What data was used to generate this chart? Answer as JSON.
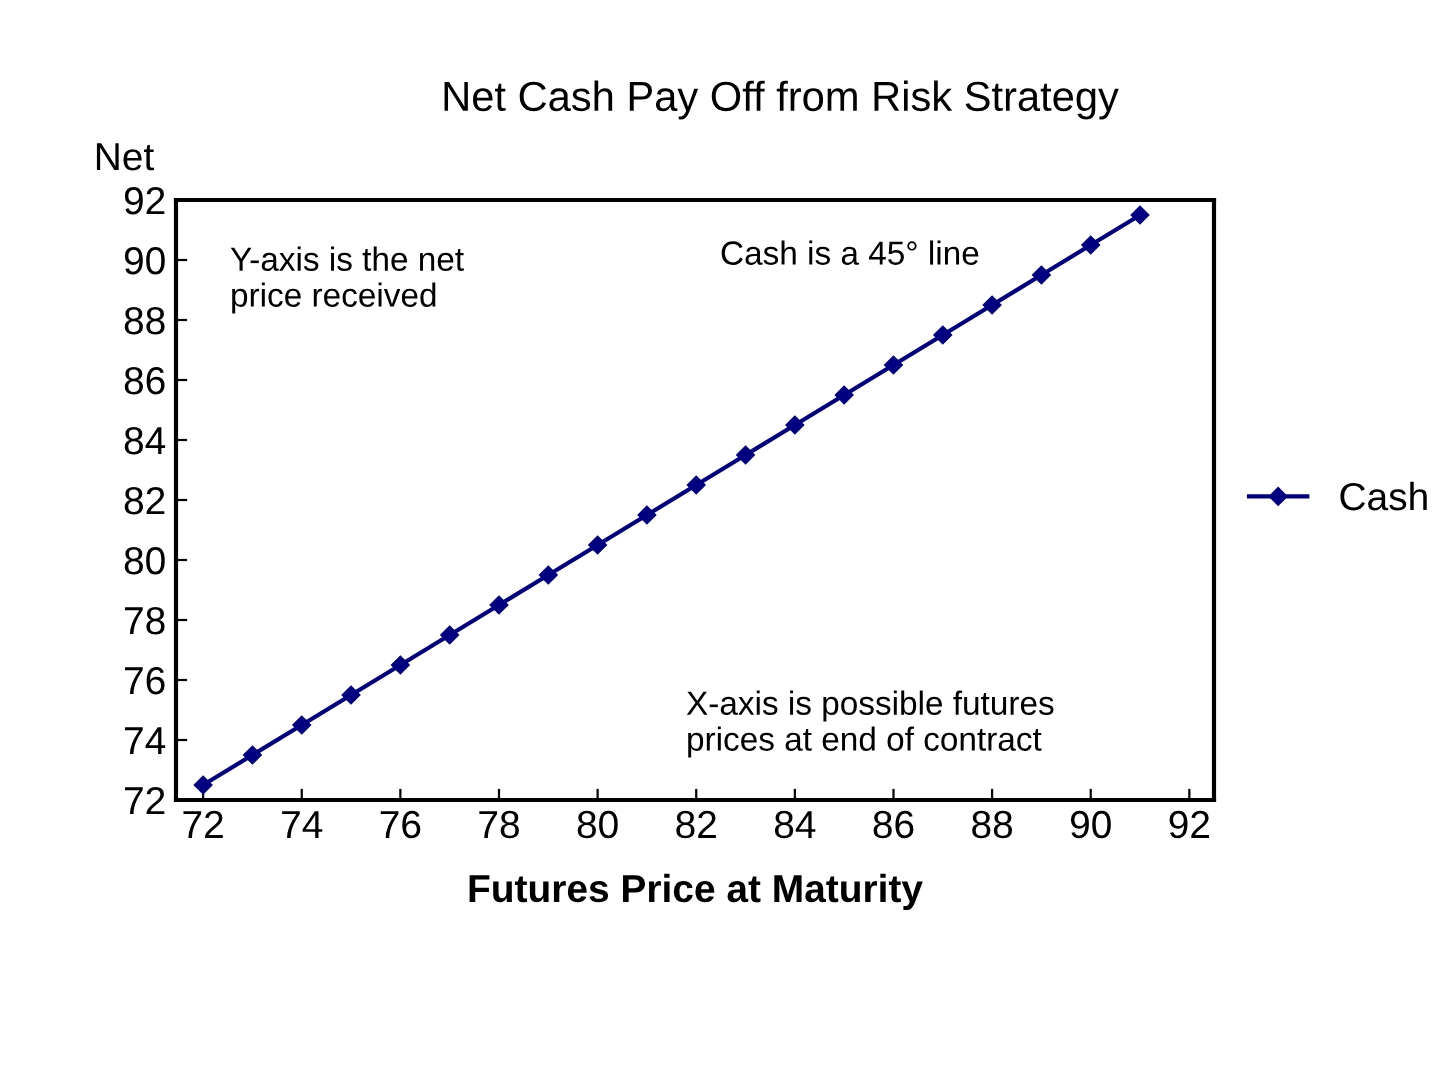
{
  "chart_data": {
    "type": "line",
    "title": "Net Cash Pay Off from Risk Strategy",
    "xlabel": "Futures Price at Maturity",
    "ylabel": "Net",
    "x": [
      72,
      73,
      74,
      75,
      76,
      77,
      78,
      79,
      80,
      81,
      82,
      83,
      84,
      85,
      86,
      87,
      88,
      89,
      90,
      91
    ],
    "series": [
      {
        "name": "Cash",
        "color": "#000080",
        "values": [
          72.5,
          73.5,
          74.5,
          75.5,
          76.5,
          77.5,
          78.5,
          79.5,
          80.5,
          81.5,
          82.5,
          83.5,
          84.5,
          85.5,
          86.5,
          87.5,
          88.5,
          89.5,
          90.5,
          91.5
        ]
      }
    ],
    "xlim": [
      71.45,
      92.5
    ],
    "xticks": [
      72,
      74,
      76,
      78,
      80,
      82,
      84,
      86,
      88,
      90,
      92
    ],
    "ylim": [
      72,
      92
    ],
    "yticks": [
      72,
      74,
      76,
      78,
      80,
      82,
      84,
      86,
      88,
      90,
      92
    ],
    "marker": "diamond",
    "line_style": "solid",
    "grid": false,
    "legend": "right",
    "annotations": [
      "Y-axis is the net\nprice received",
      "Cash is a 45° line",
      "X-axis is possible futures\nprices at end of contract"
    ]
  }
}
